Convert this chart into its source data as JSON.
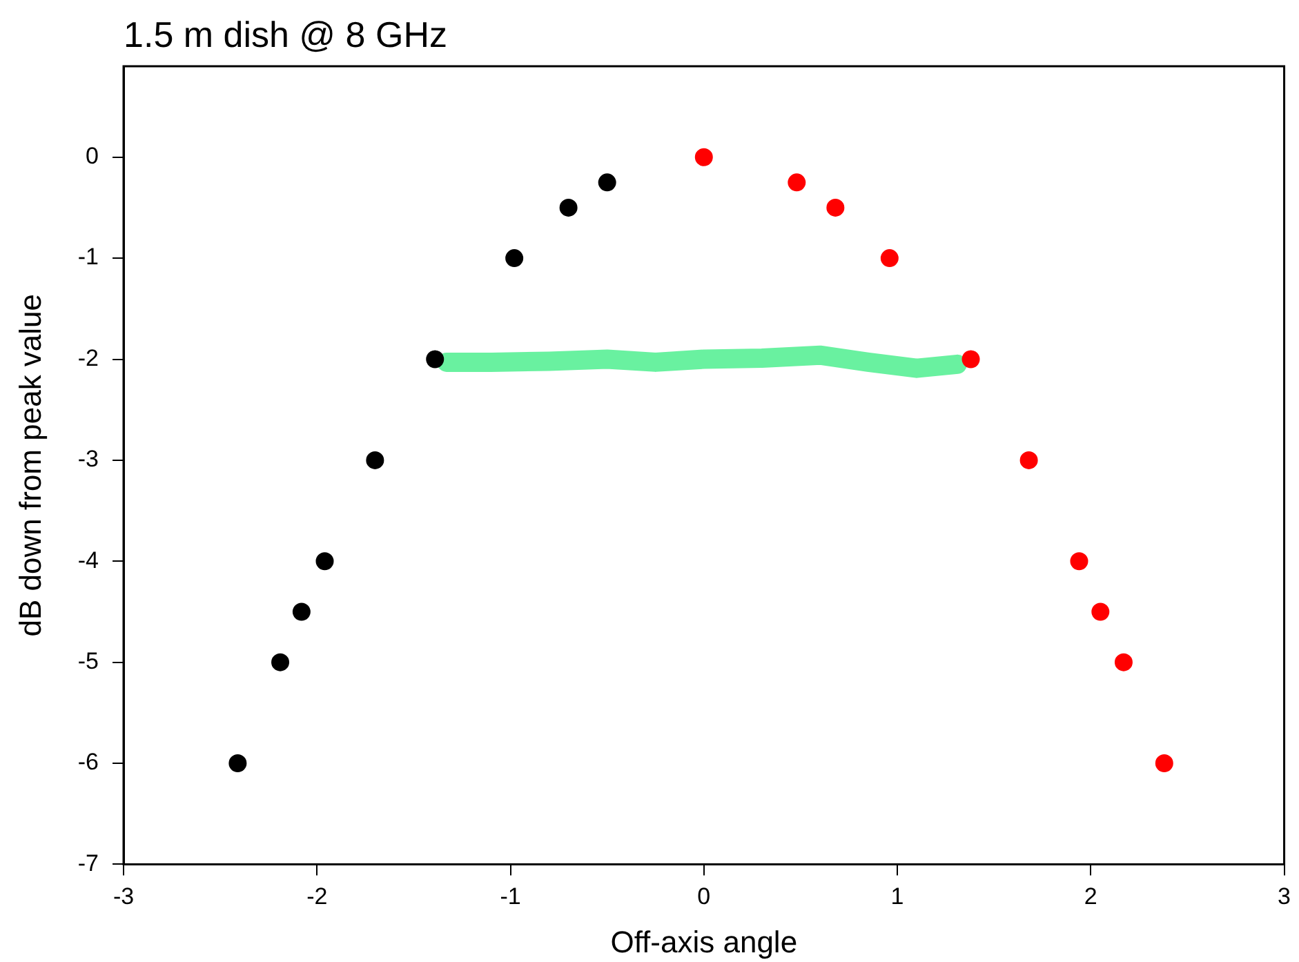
{
  "chart_data": {
    "type": "scatter",
    "title": "1.5 m dish @ 8 GHz",
    "xlabel": "Off-axis angle",
    "ylabel": "dB down from peak value",
    "xlim": [
      -3,
      3
    ],
    "ylim": [
      -7,
      0.9
    ],
    "xticks": [
      -3,
      -2,
      -1,
      0,
      1,
      2,
      3
    ],
    "yticks": [
      -7,
      -6,
      -5,
      -4,
      -3,
      -2,
      -1,
      0
    ],
    "grid": false,
    "legend": false,
    "marker": "circle",
    "series": [
      {
        "type": "line",
        "marker": "none",
        "line_style": "solid",
        "color": "#44ee88",
        "x": [
          -1.33,
          -1.1,
          -0.8,
          -0.5,
          -0.25,
          0,
          0.3,
          0.6,
          0.85,
          1.1,
          1.31
        ],
        "values": [
          -2.03,
          -2.03,
          -2.02,
          -2.0,
          -2.03,
          -2.0,
          -1.99,
          -1.96,
          -2.03,
          -2.09,
          -2.05
        ]
      },
      {
        "color": "#000000",
        "x": [
          -2.41,
          -2.19,
          -2.08,
          -1.96,
          -1.7,
          -1.39,
          -0.98,
          -0.7,
          -0.5
        ],
        "values": [
          -6,
          -5,
          -4.5,
          -4,
          -3,
          -2,
          -1,
          -0.5,
          -0.25
        ]
      },
      {
        "color": "#ff0000",
        "x": [
          0,
          0.48,
          0.68,
          0.96,
          1.38,
          1.68,
          1.94,
          2.05,
          2.17,
          2.38
        ],
        "values": [
          0,
          -0.25,
          -0.5,
          -1,
          -2,
          -3,
          -4,
          -4.5,
          -5,
          -6
        ]
      }
    ]
  }
}
